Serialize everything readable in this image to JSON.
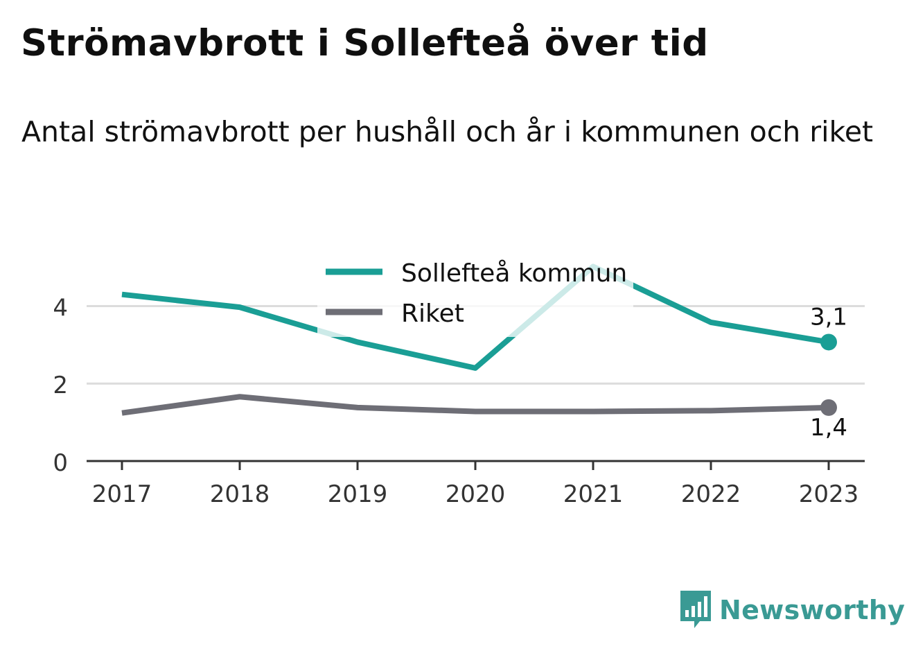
{
  "title": "Strömavbrott i Sollefteå över tid",
  "subtitle": "Antal strömavbrott per hushåll och år i kommunen och riket",
  "brand": {
    "name": "Newsworthy",
    "logo_icon": "newsworthy-bar-chart-icon",
    "color": "#3a9a94"
  },
  "chart_data": {
    "type": "line",
    "x": [
      "2017",
      "2018",
      "2019",
      "2020",
      "2021",
      "2022",
      "2023"
    ],
    "ylim": [
      0,
      5.1
    ],
    "yticks": [
      0,
      2,
      4
    ],
    "ytick_labels": [
      "0",
      "2",
      "4"
    ],
    "grid": true,
    "legend_position": "top-center",
    "series": [
      {
        "name": "Sollefteå kommun",
        "color": "#1a9e95",
        "values": [
          4.3,
          3.97,
          3.07,
          2.4,
          5.02,
          3.58,
          3.07
        ],
        "end_label": "3,1"
      },
      {
        "name": "Riket",
        "color": "#6e6e76",
        "values": [
          1.24,
          1.66,
          1.38,
          1.28,
          1.28,
          1.3,
          1.38
        ],
        "end_label": "1,4"
      }
    ]
  }
}
